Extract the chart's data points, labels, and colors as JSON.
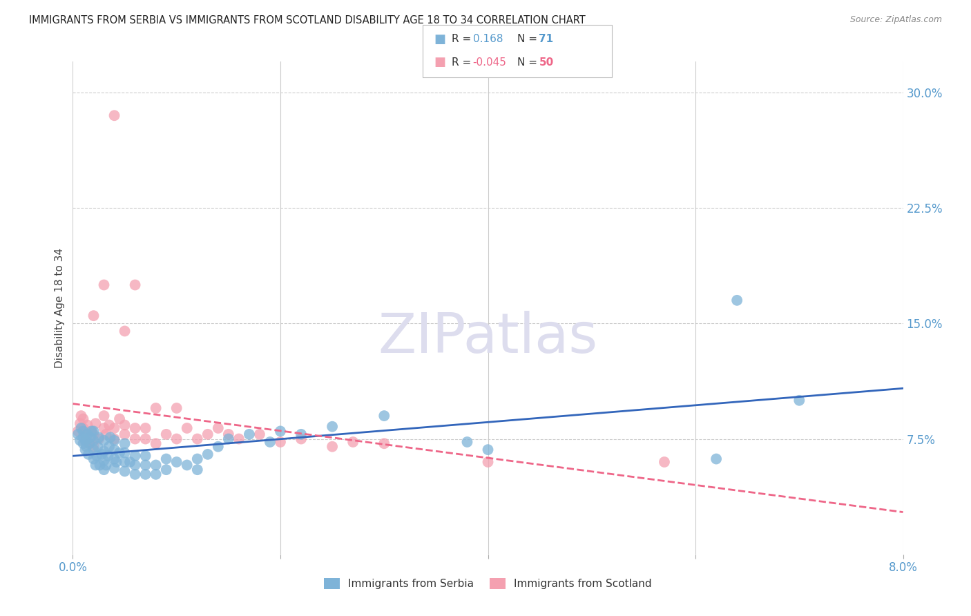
{
  "title": "IMMIGRANTS FROM SERBIA VS IMMIGRANTS FROM SCOTLAND DISABILITY AGE 18 TO 34 CORRELATION CHART",
  "source": "Source: ZipAtlas.com",
  "ylabel": "Disability Age 18 to 34",
  "xlim": [
    0.0,
    0.08
  ],
  "ylim": [
    0.0,
    0.32
  ],
  "y_ticks_right": [
    0.075,
    0.15,
    0.225,
    0.3
  ],
  "y_tick_labels_right": [
    "7.5%",
    "15.0%",
    "22.5%",
    "30.0%"
  ],
  "legend_serbia_R": "0.168",
  "legend_serbia_N": "71",
  "legend_scotland_R": "-0.045",
  "legend_scotland_N": "50",
  "serbia_color": "#7EB3D8",
  "scotland_color": "#F4A0B0",
  "serbia_line_color": "#3366BB",
  "scotland_line_color": "#EE6688",
  "legend_items": [
    "Immigrants from Serbia",
    "Immigrants from Scotland"
  ],
  "serbia_x": [
    0.0005,
    0.0007,
    0.0008,
    0.001,
    0.001,
    0.001,
    0.0012,
    0.0012,
    0.0013,
    0.0014,
    0.0015,
    0.0016,
    0.0017,
    0.0018,
    0.002,
    0.002,
    0.002,
    0.002,
    0.0022,
    0.0023,
    0.0024,
    0.0025,
    0.0026,
    0.0028,
    0.003,
    0.003,
    0.003,
    0.003,
    0.0032,
    0.0034,
    0.0035,
    0.0036,
    0.004,
    0.004,
    0.004,
    0.004,
    0.0042,
    0.0045,
    0.005,
    0.005,
    0.005,
    0.005,
    0.0055,
    0.006,
    0.006,
    0.006,
    0.007,
    0.007,
    0.007,
    0.008,
    0.008,
    0.009,
    0.009,
    0.01,
    0.011,
    0.012,
    0.012,
    0.013,
    0.014,
    0.015,
    0.017,
    0.019,
    0.02,
    0.022,
    0.025,
    0.03,
    0.038,
    0.04,
    0.062,
    0.064,
    0.07
  ],
  "serbia_y": [
    0.078,
    0.074,
    0.082,
    0.072,
    0.076,
    0.08,
    0.068,
    0.074,
    0.07,
    0.078,
    0.065,
    0.072,
    0.076,
    0.08,
    0.062,
    0.068,
    0.074,
    0.08,
    0.058,
    0.064,
    0.07,
    0.076,
    0.058,
    0.065,
    0.055,
    0.061,
    0.067,
    0.074,
    0.058,
    0.064,
    0.07,
    0.076,
    0.056,
    0.062,
    0.068,
    0.074,
    0.06,
    0.066,
    0.054,
    0.06,
    0.066,
    0.072,
    0.06,
    0.052,
    0.058,
    0.064,
    0.052,
    0.058,
    0.064,
    0.052,
    0.058,
    0.055,
    0.062,
    0.06,
    0.058,
    0.055,
    0.062,
    0.065,
    0.07,
    0.075,
    0.078,
    0.073,
    0.08,
    0.078,
    0.083,
    0.09,
    0.073,
    0.068,
    0.062,
    0.165,
    0.1
  ],
  "scotland_x": [
    0.0005,
    0.0007,
    0.0008,
    0.001,
    0.001,
    0.0012,
    0.0014,
    0.0016,
    0.0018,
    0.002,
    0.002,
    0.0022,
    0.0025,
    0.003,
    0.003,
    0.0032,
    0.0035,
    0.004,
    0.004,
    0.0045,
    0.005,
    0.005,
    0.006,
    0.006,
    0.007,
    0.007,
    0.008,
    0.009,
    0.01,
    0.011,
    0.012,
    0.013,
    0.014,
    0.015,
    0.016,
    0.018,
    0.02,
    0.022,
    0.025,
    0.027,
    0.03,
    0.002,
    0.003,
    0.004,
    0.005,
    0.006,
    0.008,
    0.01,
    0.04,
    0.057
  ],
  "scotland_y": [
    0.08,
    0.085,
    0.09,
    0.082,
    0.088,
    0.078,
    0.084,
    0.072,
    0.08,
    0.07,
    0.078,
    0.085,
    0.075,
    0.082,
    0.09,
    0.078,
    0.084,
    0.075,
    0.082,
    0.088,
    0.078,
    0.084,
    0.075,
    0.082,
    0.075,
    0.082,
    0.072,
    0.078,
    0.075,
    0.082,
    0.075,
    0.078,
    0.082,
    0.078,
    0.075,
    0.078,
    0.073,
    0.075,
    0.07,
    0.073,
    0.072,
    0.155,
    0.175,
    0.285,
    0.145,
    0.175,
    0.095,
    0.095,
    0.06,
    0.06
  ]
}
